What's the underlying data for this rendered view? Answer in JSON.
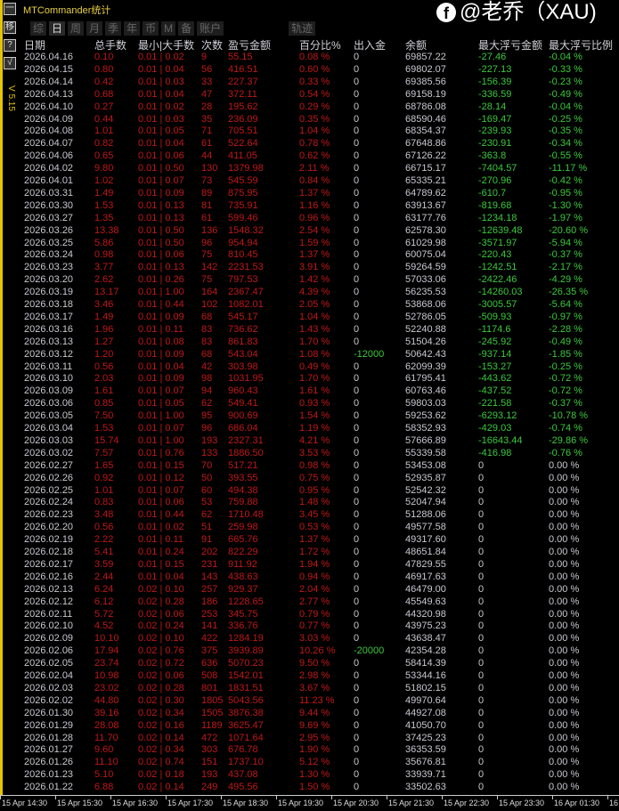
{
  "title": "MTCommander统计",
  "version": "V 5.15",
  "side_buttons": [
    "一",
    "移",
    "?",
    "√"
  ],
  "tabs": [
    {
      "label": "综",
      "active": false
    },
    {
      "label": "日",
      "active": true
    },
    {
      "label": "周",
      "active": false
    },
    {
      "label": "月",
      "active": false
    },
    {
      "label": "季",
      "active": false
    },
    {
      "label": "年",
      "active": false
    },
    {
      "label": "币",
      "active": false
    },
    {
      "label": "M",
      "active": false
    },
    {
      "label": "备",
      "active": false
    },
    {
      "label": "账户",
      "active": false
    },
    {
      "label": "轨迹",
      "active": false
    }
  ],
  "headers": [
    "日期",
    "总手数",
    "最小|大手数",
    "次数",
    "盈亏金额",
    "百分比%",
    "出入金",
    "余额",
    "最大浮亏金额",
    "最大浮亏比例"
  ],
  "colors": {
    "profit": "#c01818",
    "drawdown": "#3cc83c",
    "text": "#c8c8d0",
    "accent": "#e8c400"
  },
  "rows": [
    [
      "2026.04.16",
      "0.10",
      "0.01 | 0.02",
      "9",
      "55.15",
      "0.08 %",
      "0",
      "69857.22",
      "-27.46",
      "-0.04 %"
    ],
    [
      "2026.04.15",
      "0.80",
      "0.01 | 0.04",
      "56",
      "416.51",
      "0.60 %",
      "0",
      "69802.07",
      "-227.13",
      "-0.33 %"
    ],
    [
      "2026.04.14",
      "0.42",
      "0.01 | 0.03",
      "33",
      "227.37",
      "0.33 %",
      "0",
      "69385.56",
      "-156.39",
      "-0.23 %"
    ],
    [
      "2026.04.13",
      "0.68",
      "0.01 | 0.04",
      "47",
      "372.11",
      "0.54 %",
      "0",
      "69158.19",
      "-336.59",
      "-0.49 %"
    ],
    [
      "2026.04.10",
      "0.27",
      "0.01 | 0.02",
      "28",
      "195.62",
      "0.29 %",
      "0",
      "68786.08",
      "-28.14",
      "-0.04 %"
    ],
    [
      "2026.04.09",
      "0.44",
      "0.01 | 0.03",
      "35",
      "236.09",
      "0.35 %",
      "0",
      "68590.46",
      "-169.47",
      "-0.25 %"
    ],
    [
      "2026.04.08",
      "1.01",
      "0.01 | 0.05",
      "71",
      "705.51",
      "1.04 %",
      "0",
      "68354.37",
      "-239.93",
      "-0.35 %"
    ],
    [
      "2026.04.07",
      "0.82",
      "0.01 | 0.04",
      "61",
      "522.64",
      "0.78 %",
      "0",
      "67648.86",
      "-230.91",
      "-0.34 %"
    ],
    [
      "2026.04.06",
      "0.65",
      "0.01 | 0.06",
      "44",
      "411.05",
      "0.62 %",
      "0",
      "67126.22",
      "-363.8",
      "-0.55 %"
    ],
    [
      "2026.04.02",
      "9.80",
      "0.01 | 0.50",
      "130",
      "1379.98",
      "2.11 %",
      "0",
      "66715.17",
      "-7404.57",
      "-11.17 %"
    ],
    [
      "2026.04.01",
      "1.02",
      "0.01 | 0.07",
      "73",
      "545.59",
      "0.84 %",
      "0",
      "65335.21",
      "-270.96",
      "-0.42 %"
    ],
    [
      "2026.03.31",
      "1.49",
      "0.01 | 0.09",
      "89",
      "875.95",
      "1.37 %",
      "0",
      "64789.62",
      "-610.7",
      "-0.95 %"
    ],
    [
      "2026.03.30",
      "1.53",
      "0.01 | 0.13",
      "81",
      "735.91",
      "1.16 %",
      "0",
      "63913.67",
      "-819.68",
      "-1.30 %"
    ],
    [
      "2026.03.27",
      "1.35",
      "0.01 | 0.13",
      "61",
      "599.46",
      "0.96 %",
      "0",
      "63177.76",
      "-1234.18",
      "-1.97 %"
    ],
    [
      "2026.03.26",
      "13.38",
      "0.01 | 0.50",
      "136",
      "1548.32",
      "2.54 %",
      "0",
      "62578.30",
      "-12639.48",
      "-20.60 %"
    ],
    [
      "2026.03.25",
      "5.86",
      "0.01 | 0.50",
      "96",
      "954.94",
      "1.59 %",
      "0",
      "61029.98",
      "-3571.97",
      "-5.94 %"
    ],
    [
      "2026.03.24",
      "0.98",
      "0.01 | 0.06",
      "75",
      "810.45",
      "1.37 %",
      "0",
      "60075.04",
      "-220.43",
      "-0.37 %"
    ],
    [
      "2026.03.23",
      "3.77",
      "0.01 | 0.13",
      "142",
      "2231.53",
      "3.91 %",
      "0",
      "59264.59",
      "-1242.51",
      "-2.17 %"
    ],
    [
      "2026.03.20",
      "2.62",
      "0.01 | 0.26",
      "75",
      "797.53",
      "1.42 %",
      "0",
      "57033.06",
      "-2422.46",
      "-4.29 %"
    ],
    [
      "2026.03.19",
      "13.17",
      "0.01 | 1.00",
      "164",
      "2367.47",
      "4.39 %",
      "0",
      "56235.53",
      "-14260.03",
      "-26.35 %"
    ],
    [
      "2026.03.18",
      "3.46",
      "0.01 | 0.44",
      "102",
      "1082.01",
      "2.05 %",
      "0",
      "53868.06",
      "-3005.57",
      "-5.64 %"
    ],
    [
      "2026.03.17",
      "1.49",
      "0.01 | 0.09",
      "68",
      "545.17",
      "1.04 %",
      "0",
      "52786.05",
      "-509.93",
      "-0.97 %"
    ],
    [
      "2026.03.16",
      "1.96",
      "0.01 | 0.11",
      "83",
      "736.62",
      "1.43 %",
      "0",
      "52240.88",
      "-1174.6",
      "-2.28 %"
    ],
    [
      "2026.03.13",
      "1.27",
      "0.01 | 0.08",
      "83",
      "861.83",
      "1.70 %",
      "0",
      "51504.26",
      "-245.92",
      "-0.49 %"
    ],
    [
      "2026.03.12",
      "1.20",
      "0.01 | 0.09",
      "68",
      "543.04",
      "1.08 %",
      "-12000",
      "50642.43",
      "-937.14",
      "-1.85 %"
    ],
    [
      "2026.03.11",
      "0.56",
      "0.01 | 0.04",
      "42",
      "303.98",
      "0.49 %",
      "0",
      "62099.39",
      "-153.27",
      "-0.25 %"
    ],
    [
      "2026.03.10",
      "2.03",
      "0.01 | 0.09",
      "98",
      "1031.95",
      "1.70 %",
      "0",
      "61795.41",
      "-443.62",
      "-0.72 %"
    ],
    [
      "2026.03.09",
      "1.61",
      "0.01 | 0.07",
      "94",
      "960.43",
      "1.61 %",
      "0",
      "60763.46",
      "-437.52",
      "-0.72 %"
    ],
    [
      "2026.03.06",
      "0.85",
      "0.01 | 0.05",
      "62",
      "549.41",
      "0.93 %",
      "0",
      "59803.03",
      "-221.58",
      "-0.37 %"
    ],
    [
      "2026.03.05",
      "7.50",
      "0.01 | 1.00",
      "95",
      "900.69",
      "1.54 %",
      "0",
      "59253.62",
      "-6293.12",
      "-10.78 %"
    ],
    [
      "2026.03.04",
      "1.53",
      "0.01 | 0.07",
      "96",
      "686.04",
      "1.19 %",
      "0",
      "58352.93",
      "-429.03",
      "-0.74 %"
    ],
    [
      "2026.03.03",
      "15.74",
      "0.01 | 1.00",
      "193",
      "2327.31",
      "4.21 %",
      "0",
      "57666.89",
      "-16643.44",
      "-29.86 %"
    ],
    [
      "2026.03.02",
      "7.57",
      "0.01 | 0.76",
      "133",
      "1886.50",
      "3.53 %",
      "0",
      "55339.58",
      "-416.98",
      "-0.76 %"
    ],
    [
      "2026.02.27",
      "1.65",
      "0.01 | 0.15",
      "70",
      "517.21",
      "0.98 %",
      "0",
      "53453.08",
      "0",
      "0.00 %"
    ],
    [
      "2026.02.26",
      "0.92",
      "0.01 | 0.12",
      "50",
      "393.55",
      "0.75 %",
      "0",
      "52935.87",
      "0",
      "0.00 %"
    ],
    [
      "2026.02.25",
      "1.01",
      "0.01 | 0.07",
      "60",
      "494.38",
      "0.95 %",
      "0",
      "52542.32",
      "0",
      "0.00 %"
    ],
    [
      "2026.02.24",
      "0.83",
      "0.01 | 0.06",
      "53",
      "759.88",
      "1.48 %",
      "0",
      "52047.94",
      "0",
      "0.00 %"
    ],
    [
      "2026.02.23",
      "3.48",
      "0.01 | 0.44",
      "62",
      "1710.48",
      "3.45 %",
      "0",
      "51288.06",
      "0",
      "0.00 %"
    ],
    [
      "2026.02.20",
      "0.56",
      "0.01 | 0.02",
      "51",
      "259.98",
      "0.53 %",
      "0",
      "49577.58",
      "0",
      "0.00 %"
    ],
    [
      "2026.02.19",
      "2.22",
      "0.01 | 0.11",
      "91",
      "665.76",
      "1.37 %",
      "0",
      "49317.60",
      "0",
      "0.00 %"
    ],
    [
      "2026.02.18",
      "5.41",
      "0.01 | 0.24",
      "202",
      "822.29",
      "1.72 %",
      "0",
      "48651.84",
      "0",
      "0.00 %"
    ],
    [
      "2026.02.17",
      "3.59",
      "0.01 | 0.15",
      "231",
      "911.92",
      "1.94 %",
      "0",
      "47829.55",
      "0",
      "0.00 %"
    ],
    [
      "2026.02.16",
      "2.44",
      "0.01 | 0.04",
      "143",
      "438.63",
      "0.94 %",
      "0",
      "46917.63",
      "0",
      "0.00 %"
    ],
    [
      "2026.02.13",
      "6.24",
      "0.02 | 0.10",
      "257",
      "929.37",
      "2.04 %",
      "0",
      "46479.00",
      "0",
      "0.00 %"
    ],
    [
      "2026.02.12",
      "6.12",
      "0.02 | 0.28",
      "186",
      "1228.65",
      "2.77 %",
      "0",
      "45549.63",
      "0",
      "0.00 %"
    ],
    [
      "2026.02.11",
      "5.72",
      "0.02 | 0.06",
      "253",
      "345.75",
      "0.79 %",
      "0",
      "44320.98",
      "0",
      "0.00 %"
    ],
    [
      "2026.02.10",
      "4.52",
      "0.02 | 0.24",
      "141",
      "336.76",
      "0.77 %",
      "0",
      "43975.23",
      "0",
      "0.00 %"
    ],
    [
      "2026.02.09",
      "10.10",
      "0.02 | 0.10",
      "422",
      "1284.19",
      "3.03 %",
      "0",
      "43638.47",
      "0",
      "0.00 %"
    ],
    [
      "2026.02.06",
      "17.94",
      "0.02 | 0.76",
      "375",
      "3939.89",
      "10.26 %",
      "-20000",
      "42354.28",
      "0",
      "0.00 %"
    ],
    [
      "2026.02.05",
      "23.74",
      "0.02 | 0.72",
      "636",
      "5070.23",
      "9.50 %",
      "0",
      "58414.39",
      "0",
      "0.00 %"
    ],
    [
      "2026.02.04",
      "10.98",
      "0.02 | 0.06",
      "508",
      "1542.01",
      "2.98 %",
      "0",
      "53344.16",
      "0",
      "0.00 %"
    ],
    [
      "2026.02.03",
      "23.02",
      "0.02 | 0.28",
      "801",
      "1831.51",
      "3.67 %",
      "0",
      "51802.15",
      "0",
      "0.00 %"
    ],
    [
      "2026.02.02",
      "44.80",
      "0.02 | 0.30",
      "1805",
      "5043.56",
      "11.23 %",
      "0",
      "49970.64",
      "0",
      "0.00 %"
    ],
    [
      "2026.01.30",
      "39.16",
      "0.02 | 0.34",
      "1505",
      "3876.38",
      "9.44 %",
      "0",
      "44927.08",
      "0",
      "0.00 %"
    ],
    [
      "2026.01.29",
      "28.08",
      "0.02 | 0.16",
      "1189",
      "3625.47",
      "9.69 %",
      "0",
      "41050.70",
      "0",
      "0.00 %"
    ],
    [
      "2026.01.28",
      "11.70",
      "0.02 | 0.14",
      "472",
      "1071.64",
      "2.95 %",
      "0",
      "37425.23",
      "0",
      "0.00 %"
    ],
    [
      "2026.01.27",
      "9.60",
      "0.02 | 0.34",
      "303",
      "676.78",
      "1.90 %",
      "0",
      "36353.59",
      "0",
      "0.00 %"
    ],
    [
      "2026.01.26",
      "11.10",
      "0.02 | 0.74",
      "151",
      "1737.10",
      "5.12 %",
      "0",
      "35676.81",
      "0",
      "0.00 %"
    ],
    [
      "2026.01.23",
      "5.10",
      "0.02 | 0.18",
      "193",
      "437.08",
      "1.30 %",
      "0",
      "33939.71",
      "0",
      "0.00 %"
    ],
    [
      "2026.01.22",
      "6.88",
      "0.02 | 0.14",
      "249",
      "495.56",
      "1.50 %",
      "0",
      "33502.63",
      "0",
      "0.00 %"
    ]
  ],
  "time_axis": [
    "15 Apr 14:30",
    "15 Apr 15:30",
    "15 Apr 16:30",
    "15 Apr 17:30",
    "15 Apr 18:30",
    "15 Apr 19:30",
    "15 Apr 20:30",
    "15 Apr 21:30",
    "15 Apr 22:30",
    "15 Apr 23:30",
    "16 Apr 01:30",
    "16"
  ],
  "watermark": "@老乔（XAU)"
}
